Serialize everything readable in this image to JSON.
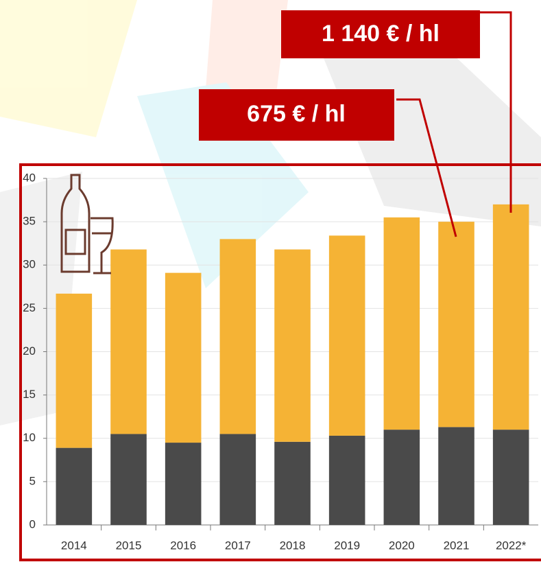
{
  "chart_data": {
    "type": "bar",
    "stacked": true,
    "categories": [
      "2014",
      "2015",
      "2016",
      "2017",
      "2018",
      "2019",
      "2020",
      "2021",
      "2022*"
    ],
    "series": [
      {
        "color": "#4a4a4a",
        "values": [
          8.9,
          10.5,
          9.5,
          10.5,
          9.6,
          10.3,
          11.0,
          11.3,
          11.0
        ]
      },
      {
        "color": "#f5b335",
        "values": [
          17.8,
          21.3,
          19.6,
          22.5,
          22.2,
          23.1,
          24.5,
          23.7,
          26.0
        ]
      }
    ],
    "ylim": [
      0,
      40
    ],
    "yticks": [
      0,
      5,
      10,
      15,
      20,
      25,
      30,
      35,
      40
    ],
    "grid": true,
    "annotations": [
      "1 140 € / hl",
      "675 € / hl"
    ]
  }
}
